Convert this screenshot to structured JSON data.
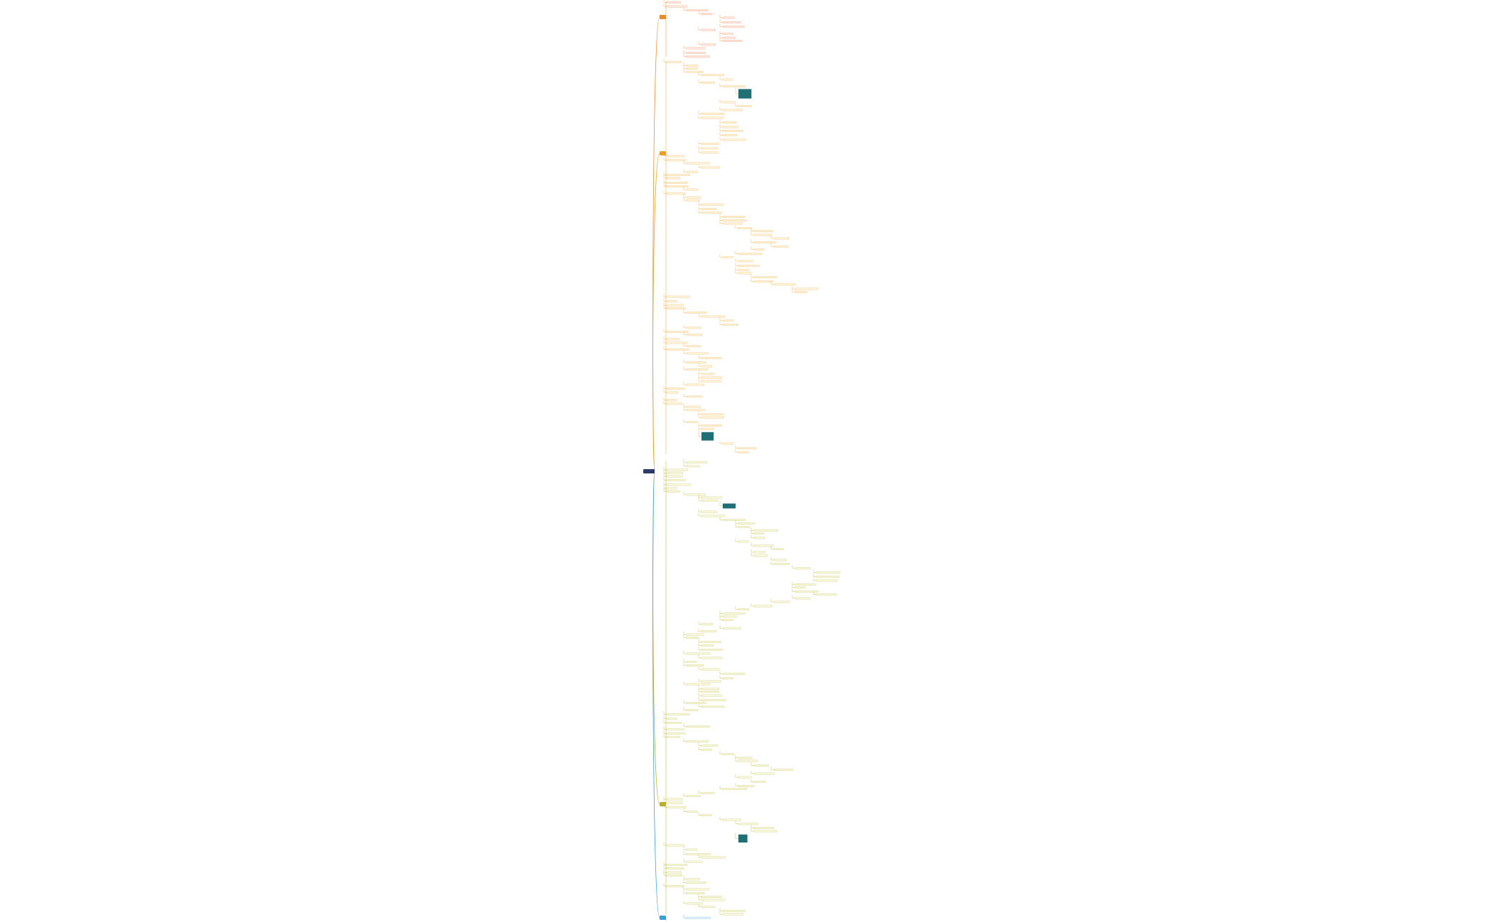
{
  "diagram": {
    "root_color": "#2b3a6b",
    "branches": [
      {
        "color": "#f08a24",
        "fill": "#fde3e3"
      },
      {
        "color": "#f0a020",
        "fill": "#fdf0d8"
      },
      {
        "color": "#b8b020",
        "fill": "#f6f6dc"
      },
      {
        "color": "#3aa0d8",
        "fill": "#e2f1fa"
      }
    ],
    "image_color": "#1f6f74"
  }
}
